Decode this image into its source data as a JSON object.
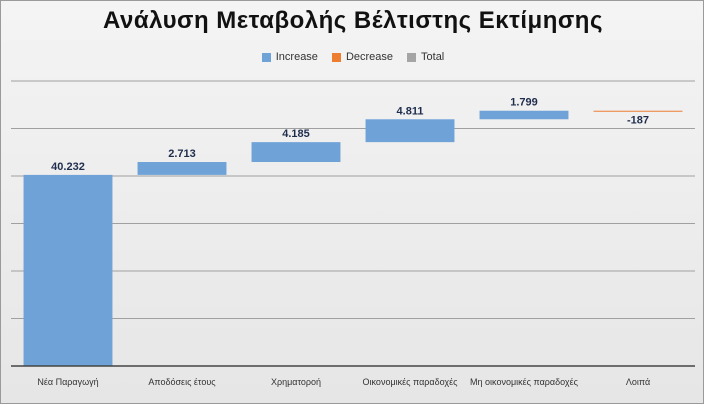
{
  "chart_data": {
    "type": "bar",
    "subtype": "waterfall",
    "title": "Ανάλυση Μεταβολής Βέλτιστης Εκτίμησης",
    "categories": [
      "Νέα Παραγωγή",
      "Αποδόσεις έτους",
      "Χρηματοροή",
      "Οικονομικές παραδοχές",
      "Μη οικονομικές παραδοχές",
      "Λοιπά"
    ],
    "values": [
      40232,
      2713,
      4185,
      4811,
      1799,
      -187
    ],
    "data_labels": [
      "40.232",
      "2.713",
      "4.185",
      "4.811",
      "1.799",
      "-187"
    ],
    "legend": [
      {
        "name": "Increase",
        "color": "#6fa3d8"
      },
      {
        "name": "Decrease",
        "color": "#ed7d31"
      },
      {
        "name": "Total",
        "color": "#a5a5a5"
      }
    ],
    "legend_position": "top",
    "ylim": [
      0,
      60000
    ],
    "grid": true,
    "colors": {
      "increase": "#6fa3d8",
      "decrease": "#ed7d31",
      "total": "#a5a5a5",
      "gridline": "#a0a0a0",
      "label": "#1f2d4d"
    }
  }
}
